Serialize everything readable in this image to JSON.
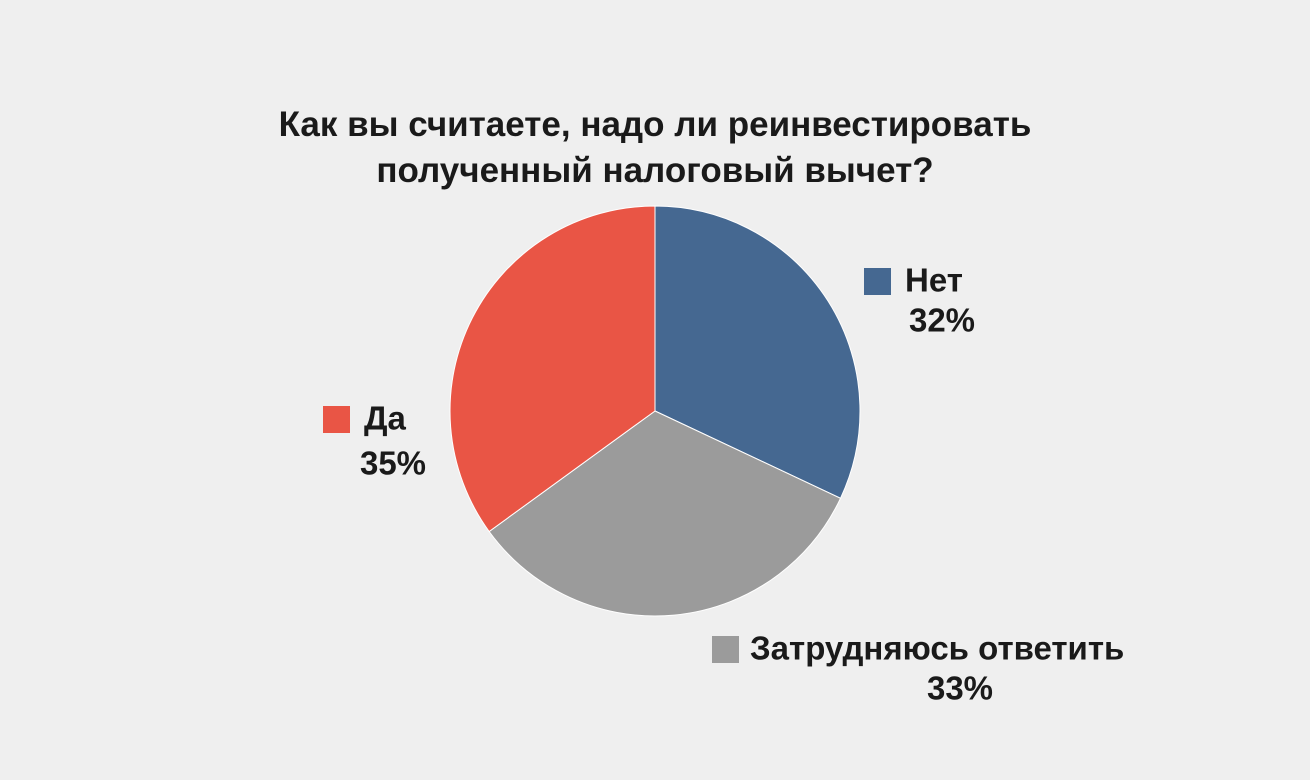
{
  "chart_data": {
    "type": "pie",
    "title": "Как вы считаете, надо ли реинвестировать полученный налоговый вычет?",
    "categories": [
      "Нет",
      "Затрудняюсь ответить",
      "Да"
    ],
    "values": [
      32,
      33,
      35
    ],
    "value_labels": [
      "32%",
      "33%",
      "35%"
    ],
    "colors": [
      "#456891",
      "#9b9b9b",
      "#e95545"
    ]
  }
}
